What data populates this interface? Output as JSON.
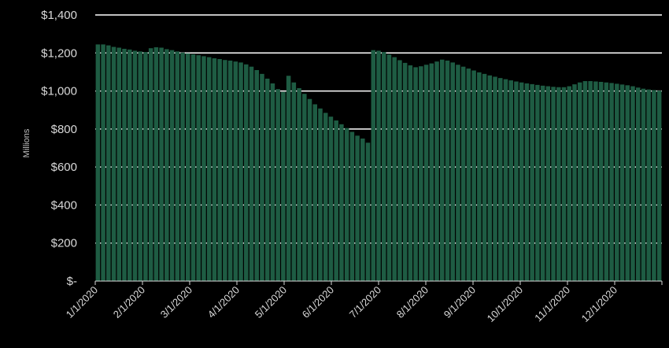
{
  "chart_data": {
    "type": "bar",
    "ylabel": "Millions",
    "xlabel": "",
    "ylim": [
      0,
      1400
    ],
    "yticks": [
      {
        "value": 0,
        "label": "$-"
      },
      {
        "value": 200,
        "label": "$200"
      },
      {
        "value": 400,
        "label": "$400"
      },
      {
        "value": 600,
        "label": "$600"
      },
      {
        "value": 800,
        "label": "$800"
      },
      {
        "value": 1000,
        "label": "$1,000"
      },
      {
        "value": 1200,
        "label": "$1,200"
      },
      {
        "value": 1400,
        "label": "$1,400"
      }
    ],
    "xticks": [
      "1/1/2020",
      "2/1/2020",
      "3/1/2020",
      "4/1/2020",
      "5/1/2020",
      "6/1/2020",
      "7/1/2020",
      "8/1/2020",
      "9/1/2020",
      "10/1/2020",
      "11/1/2020",
      "12/1/2020"
    ],
    "grid": true,
    "bar_color": "#1e5c43",
    "gridline_color": "#ffffff",
    "series": [
      {
        "values": [
          1245,
          1245,
          1240,
          1232,
          1228,
          1222,
          1218,
          1212,
          1208,
          1205,
          1225,
          1230,
          1228,
          1220,
          1215,
          1208,
          1202,
          1198,
          1193,
          1188,
          1183,
          1178,
          1172,
          1168,
          1163,
          1160,
          1155,
          1150,
          1140,
          1128,
          1110,
          1090,
          1065,
          1040,
          1010,
          995,
          1080,
          1045,
          1015,
          985,
          958,
          930,
          908,
          885,
          865,
          845,
          825,
          805,
          785,
          765,
          750,
          728,
          1215,
          1212,
          1205,
          1192,
          1178,
          1162,
          1148,
          1135,
          1125,
          1130,
          1138,
          1145,
          1155,
          1165,
          1160,
          1150,
          1138,
          1128,
          1118,
          1108,
          1098,
          1090,
          1082,
          1075,
          1068,
          1062,
          1056,
          1050,
          1045,
          1040,
          1036,
          1032,
          1028,
          1025,
          1022,
          1020,
          1020,
          1025,
          1035,
          1045,
          1052,
          1052,
          1050,
          1048,
          1045,
          1042,
          1038,
          1034,
          1030,
          1025,
          1018,
          1012,
          1008,
          1005,
          1002
        ]
      }
    ]
  }
}
